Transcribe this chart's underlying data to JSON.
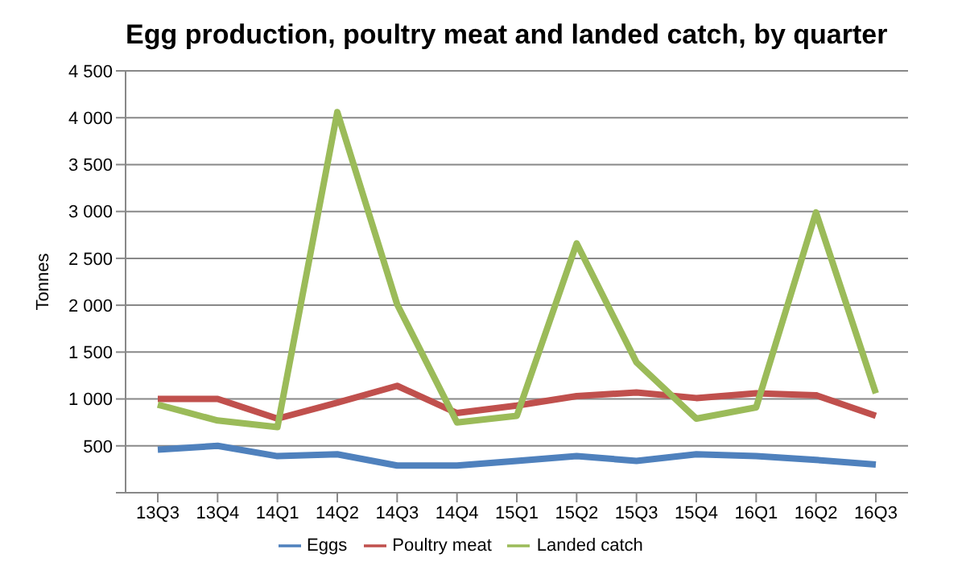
{
  "chart_data": {
    "type": "line",
    "title": "Egg production, poultry meat and landed catch, by quarter",
    "ylabel": "Tonnes",
    "categories": [
      "13Q3",
      "13Q4",
      "14Q1",
      "14Q2",
      "14Q3",
      "14Q4",
      "15Q1",
      "15Q2",
      "15Q3",
      "15Q4",
      "16Q1",
      "16Q2",
      "16Q3"
    ],
    "series": [
      {
        "name": "Eggs",
        "color": "#4f81bd",
        "values": [
          460,
          500,
          390,
          410,
          290,
          290,
          340,
          390,
          340,
          410,
          390,
          350,
          300
        ]
      },
      {
        "name": "Poultry meat",
        "color": "#c0504d",
        "values": [
          1000,
          1000,
          790,
          960,
          1140,
          850,
          930,
          1030,
          1070,
          1010,
          1060,
          1040,
          820
        ]
      },
      {
        "name": "Landed catch",
        "color": "#9bbb59",
        "values": [
          940,
          770,
          700,
          4060,
          2010,
          750,
          820,
          2660,
          1390,
          790,
          910,
          2990,
          1060
        ]
      }
    ],
    "ylim": [
      0,
      4500
    ],
    "yticks": [
      {
        "value": 0,
        "label": null
      },
      {
        "value": 500,
        "label": "500"
      },
      {
        "value": 1000,
        "label": "1 000"
      },
      {
        "value": 1500,
        "label": "1 500"
      },
      {
        "value": 2000,
        "label": "2 000"
      },
      {
        "value": 2500,
        "label": "2 500"
      },
      {
        "value": 3000,
        "label": "3 000"
      },
      {
        "value": 3500,
        "label": "3 500"
      },
      {
        "value": 4000,
        "label": "4 000"
      },
      {
        "value": 4500,
        "label": "4 500"
      }
    ],
    "grid": "y",
    "legend": "bottom",
    "marker": "none",
    "line_style": "solid"
  }
}
